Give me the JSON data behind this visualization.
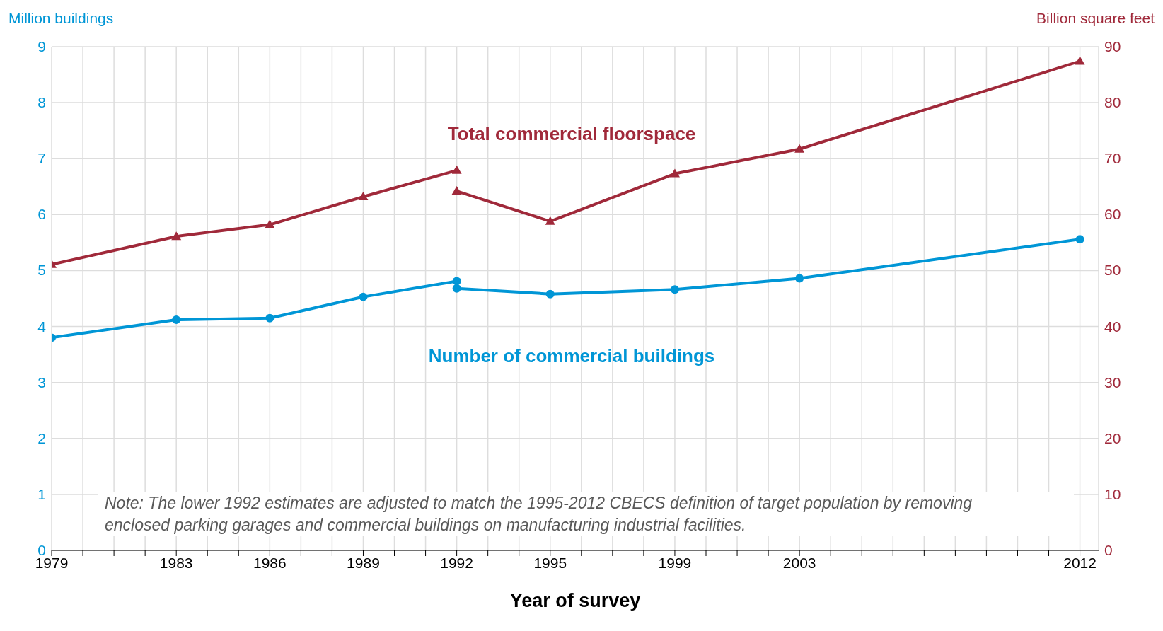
{
  "chart_data": {
    "type": "line",
    "xlabel": "Year of survey",
    "ylabel": "Million buildings",
    "y2label": "Billion square feet",
    "xlim": [
      1979,
      2012.6
    ],
    "xticks": [
      1979,
      {
        "value": 1980,
        "label": null
      },
      {
        "value": 1981,
        "label": null
      },
      {
        "value": 1982,
        "label": null
      },
      1983,
      {
        "value": 1984,
        "label": null
      },
      {
        "value": 1985,
        "label": null
      },
      1986,
      {
        "value": 1987,
        "label": null
      },
      {
        "value": 1988,
        "label": null
      },
      1989,
      {
        "value": 1990,
        "label": null
      },
      {
        "value": 1991,
        "label": null
      },
      1992,
      {
        "value": 1993,
        "label": null
      },
      {
        "value": 1994,
        "label": null
      },
      1995,
      {
        "value": 1996,
        "label": null
      },
      {
        "value": 1997,
        "label": null
      },
      {
        "value": 1998,
        "label": null
      },
      1999,
      {
        "value": 2000,
        "label": null
      },
      {
        "value": 2001,
        "label": null
      },
      {
        "value": 2002,
        "label": null
      },
      2003,
      {
        "value": 2004,
        "label": null
      },
      {
        "value": 2005,
        "label": null
      },
      {
        "value": 2006,
        "label": null
      },
      {
        "value": 2007,
        "label": null
      },
      {
        "value": 2008,
        "label": null
      },
      {
        "value": 2009,
        "label": null
      },
      {
        "value": 2010,
        "label": null
      },
      {
        "value": 2011,
        "label": null
      },
      2012
    ],
    "ylim": [
      0,
      9
    ],
    "yticks": [
      0,
      1,
      2,
      3,
      4,
      5,
      6,
      7,
      8,
      9
    ],
    "y2lim": [
      0,
      90
    ],
    "y2ticks": [
      0,
      10,
      20,
      30,
      40,
      50,
      60,
      70,
      80,
      90
    ],
    "grid": true,
    "line_style": "solid",
    "series": [
      {
        "name": "Total commercial floorspace",
        "color": "#a0293a",
        "axis": "y2",
        "marker": "triangle",
        "x": [
          1979,
          1983,
          1986,
          1989,
          1992
        ],
        "values": [
          51.1,
          56.1,
          58.2,
          63.2,
          67.9
        ]
      },
      {
        "color": "#a0293a",
        "axis": "y2",
        "marker": "triangle",
        "x": [
          1992,
          1995,
          1999,
          2003,
          2012
        ],
        "values": [
          64.2,
          58.8,
          67.3,
          71.7,
          87.4
        ]
      },
      {
        "name": "Number of commercial buildings",
        "color": "#0096d6",
        "marker": "circle",
        "x": [
          1979,
          1983,
          1986,
          1989,
          1992
        ],
        "values": [
          3.8,
          4.12,
          4.15,
          4.53,
          4.81
        ]
      },
      {
        "color": "#0096d6",
        "marker": "circle",
        "x": [
          1992,
          1995,
          1999,
          2003,
          2012
        ],
        "values": [
          4.68,
          4.58,
          4.66,
          4.86,
          5.56
        ]
      }
    ],
    "annotations": [
      "Note: The lower 1992 estimates are adjusted to match the 1995-2012 CBECS definition of target population by removing enclosed parking garages and commercial buildings on manufacturing industrial facilities."
    ]
  }
}
